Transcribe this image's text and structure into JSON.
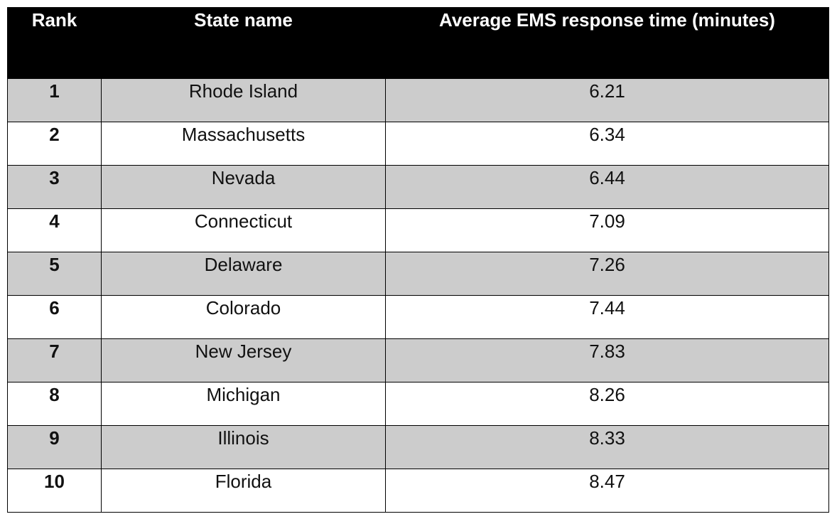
{
  "table": {
    "header": [
      "Rank",
      "State name",
      "Average EMS response time (minutes)"
    ],
    "rows": [
      [
        "1",
        "Rhode Island",
        "6.21"
      ],
      [
        "2",
        "Massachusetts",
        "6.34"
      ],
      [
        "3",
        "Nevada",
        "6.44"
      ],
      [
        "4",
        "Connecticut",
        "7.09"
      ],
      [
        "5",
        "Delaware",
        "7.26"
      ],
      [
        "6",
        "Colorado",
        "7.44"
      ],
      [
        "7",
        "New Jersey",
        "7.83"
      ],
      [
        "8",
        "Michigan",
        "8.26"
      ],
      [
        "9",
        "Illinois",
        "8.33"
      ],
      [
        "10",
        "Florida",
        "8.47"
      ]
    ]
  }
}
